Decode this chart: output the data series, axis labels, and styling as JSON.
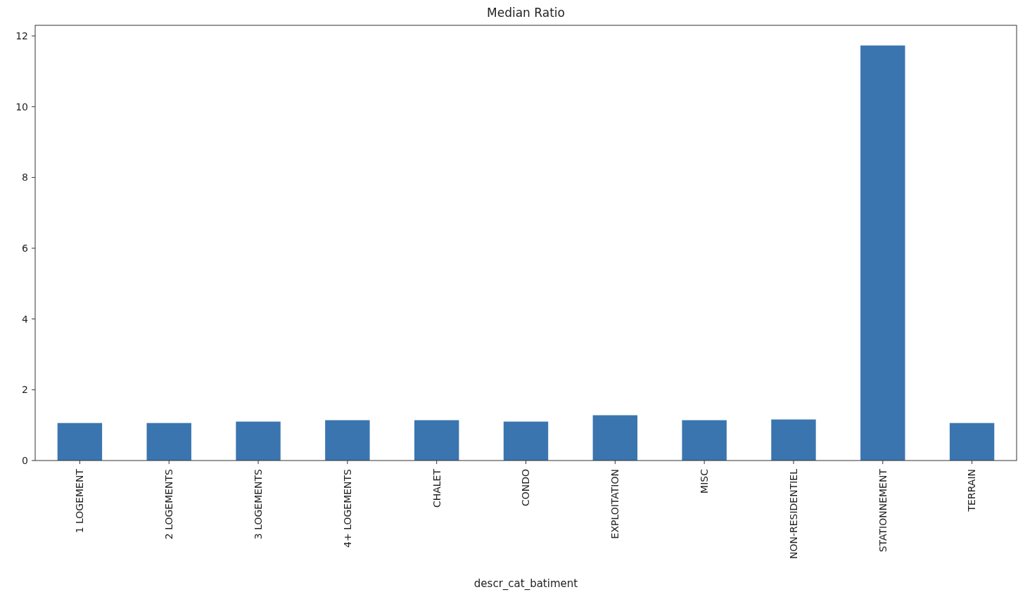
{
  "chart_data": {
    "type": "bar",
    "title": "Median Ratio",
    "xlabel": "descr_cat_batiment",
    "categories": [
      "1 LOGEMENT",
      "2 LOGEMENTS",
      "3 LOGEMENTS",
      "4+ LOGEMENTS",
      "CHALET",
      "CONDO",
      "EXPLOITATION",
      "MISC",
      "NON-RESIDENTIEL",
      "STATIONNEMENT",
      "TERRAIN"
    ],
    "values": [
      1.06,
      1.06,
      1.1,
      1.14,
      1.14,
      1.1,
      1.28,
      1.14,
      1.16,
      11.73,
      1.06
    ],
    "color": "#3a75af",
    "ylim": [
      0,
      12.3
    ],
    "yticks": [
      0,
      2,
      4,
      6,
      8,
      10,
      12
    ]
  }
}
